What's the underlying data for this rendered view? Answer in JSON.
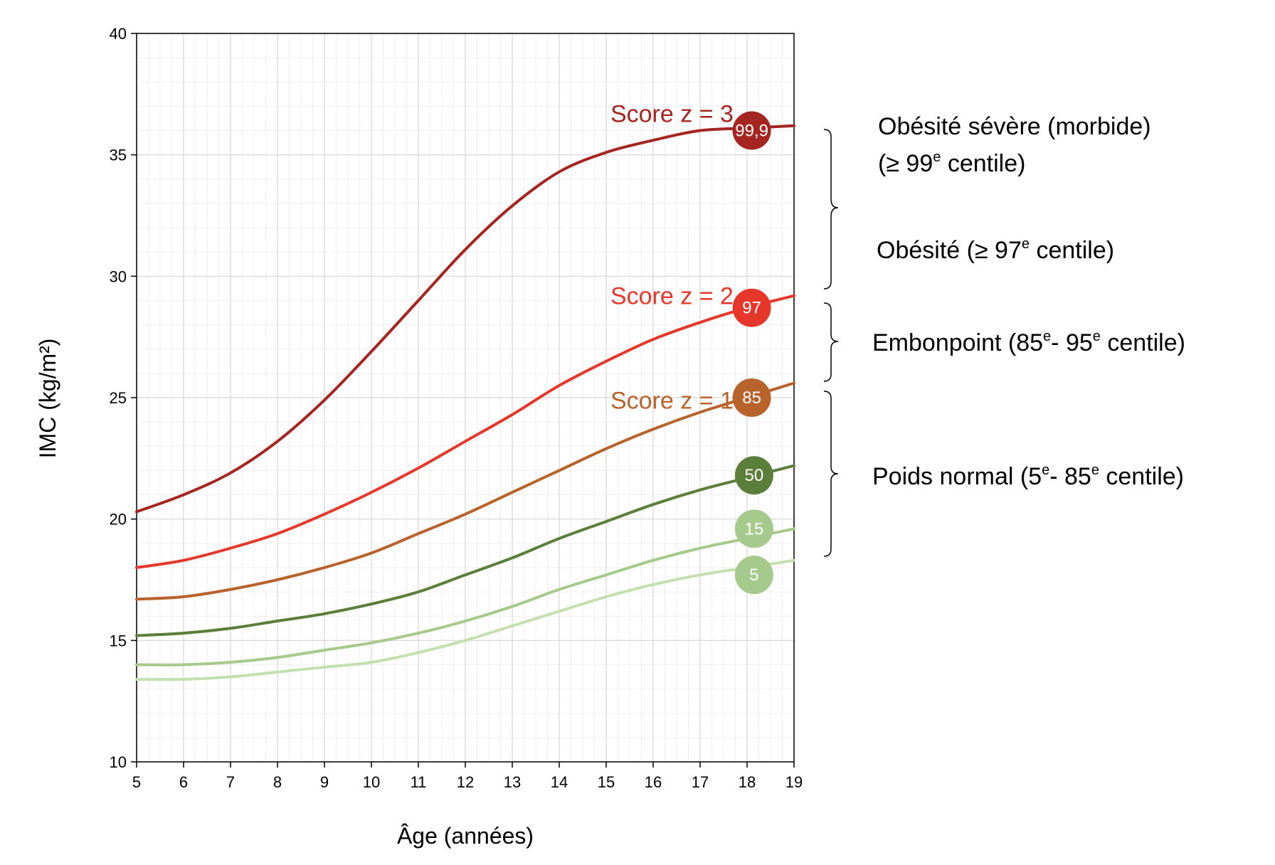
{
  "chart_data": {
    "type": "line",
    "xlabel": "Âge (années)",
    "ylabel": "IMC (kg/m²)",
    "xlim": [
      5,
      19
    ],
    "ylim": [
      10,
      40
    ],
    "x_ticks": [
      "5",
      "6",
      "7",
      "8",
      "9",
      "10",
      "11",
      "12",
      "13",
      "14",
      "15",
      "16",
      "17",
      "18",
      "19"
    ],
    "y_ticks": [
      "10",
      "15",
      "20",
      "25",
      "30",
      "35",
      "40"
    ],
    "grid": true,
    "x": [
      5,
      6,
      7,
      8,
      9,
      10,
      11,
      12,
      13,
      14,
      15,
      16,
      17,
      18,
      19
    ],
    "series": [
      {
        "name": "99,9",
        "color": "#a52520",
        "values": [
          20.3,
          21.0,
          21.9,
          23.2,
          24.9,
          26.9,
          29.0,
          31.1,
          32.9,
          34.3,
          35.1,
          35.6,
          36.0,
          36.1,
          36.2
        ]
      },
      {
        "name": "97",
        "color": "#e5382b",
        "values": [
          18.0,
          18.3,
          18.8,
          19.4,
          20.2,
          21.1,
          22.1,
          23.2,
          24.3,
          25.5,
          26.5,
          27.4,
          28.1,
          28.7,
          29.2
        ]
      },
      {
        "name": "85",
        "color": "#b8632c",
        "values": [
          16.7,
          16.8,
          17.1,
          17.5,
          18.0,
          18.6,
          19.4,
          20.2,
          21.1,
          22.0,
          22.9,
          23.7,
          24.4,
          25.0,
          25.6
        ]
      },
      {
        "name": "50",
        "color": "#5b7f3a",
        "values": [
          15.2,
          15.3,
          15.5,
          15.8,
          16.1,
          16.5,
          17.0,
          17.7,
          18.4,
          19.2,
          19.9,
          20.6,
          21.2,
          21.7,
          22.2
        ]
      },
      {
        "name": "15",
        "color": "#a6c98c",
        "values": [
          14.0,
          14.0,
          14.1,
          14.3,
          14.6,
          14.9,
          15.3,
          15.8,
          16.4,
          17.1,
          17.7,
          18.3,
          18.8,
          19.2,
          19.6
        ]
      },
      {
        "name": "5",
        "color": "#c4dfb0",
        "values": [
          13.4,
          13.4,
          13.5,
          13.7,
          13.9,
          14.1,
          14.5,
          15.0,
          15.6,
          16.2,
          16.8,
          17.3,
          17.7,
          18.0,
          18.3
        ]
      }
    ],
    "badges": [
      {
        "text": "99,9",
        "x": 18.1,
        "y": 36.0,
        "color": "#a52520"
      },
      {
        "text": "97",
        "x": 18.1,
        "y": 28.7,
        "color": "#e5382b"
      },
      {
        "text": "85",
        "x": 18.1,
        "y": 25.0,
        "color": "#b8632c"
      },
      {
        "text": "50",
        "x": 18.15,
        "y": 21.8,
        "color": "#5b7f3a"
      },
      {
        "text": "15",
        "x": 18.15,
        "y": 19.6,
        "color": "#a6c98c"
      },
      {
        "text": "5",
        "x": 18.15,
        "y": 17.7,
        "color": "#a6c98c"
      }
    ],
    "annotations": [
      {
        "text": "Score z = 3",
        "x": 16.4,
        "y": 36.7,
        "color": "#a52520"
      },
      {
        "text": "Score z = 2",
        "x": 16.4,
        "y": 29.2,
        "color": "#e5382b"
      },
      {
        "text": "Score z = 1",
        "x": 16.4,
        "y": 24.9,
        "color": "#b8632c"
      }
    ],
    "categories_labels": {
      "severe_line1": "Obésité sévère (morbide)",
      "severe_pre": "(≥ 99",
      "severe_sup": "e",
      "severe_post": "centile)",
      "obesity_pre": "Obésité (≥ 97",
      "obesity_sup": "e",
      "obesity_post": " centile)",
      "overweight_pre": "Embonpoint (85",
      "overweight_sup1": "e",
      "overweight_mid": "- 95",
      "overweight_sup2": "e",
      "overweight_post": " centile)",
      "normal_pre": "Poids normal (5",
      "normal_sup1": "e",
      "normal_mid": "- 85",
      "normal_sup2": "e",
      "normal_post": " centile)"
    }
  }
}
